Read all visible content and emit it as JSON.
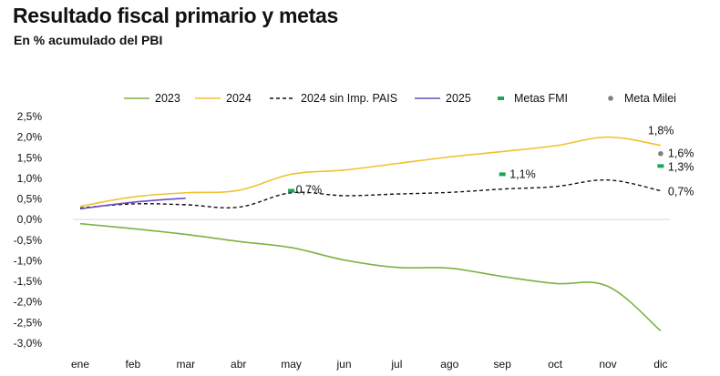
{
  "header": {
    "title": "Resultado fiscal primario y metas",
    "subtitle": "En % acumulado del PBI"
  },
  "chart_data": {
    "type": "line",
    "categories": [
      "ene",
      "feb",
      "mar",
      "abr",
      "may",
      "jun",
      "jul",
      "ago",
      "sep",
      "oct",
      "nov",
      "dic"
    ],
    "y_ticks": [
      "2,5%",
      "2,0%",
      "1,5%",
      "1,0%",
      "0,5%",
      "0,0%",
      "-0,5%",
      "-1,0%",
      "-1,5%",
      "-2,0%",
      "-2,5%",
      "-3,0%"
    ],
    "ylim": [
      -3.0,
      2.5
    ],
    "grid": false,
    "legend_position": "top",
    "series": [
      {
        "name": "2023",
        "style": "solid",
        "color": "#7cb342",
        "values": [
          -0.1,
          -0.22,
          -0.36,
          -0.53,
          -0.68,
          -0.98,
          -1.16,
          -1.18,
          -1.38,
          -1.55,
          -1.62,
          -2.7
        ]
      },
      {
        "name": "2024",
        "style": "solid",
        "color": "#f2c12e",
        "values": [
          0.32,
          0.55,
          0.65,
          0.71,
          1.1,
          1.2,
          1.36,
          1.52,
          1.65,
          1.79,
          2.0,
          1.8
        ]
      },
      {
        "name": "2024 sin Imp. PAIS",
        "style": "dashed",
        "color": "#111111",
        "values": [
          0.28,
          0.38,
          0.36,
          0.3,
          0.65,
          0.58,
          0.62,
          0.66,
          0.74,
          0.8,
          0.96,
          0.7
        ]
      },
      {
        "name": "2025",
        "style": "solid",
        "color": "#6a4dbf",
        "values": [
          0.26,
          0.42,
          0.52,
          null,
          null,
          null,
          null,
          null,
          null,
          null,
          null,
          null
        ]
      }
    ],
    "markers": [
      {
        "name": "Metas FMI",
        "color": "#1aa55a",
        "shape": "dash",
        "points": [
          {
            "x": "may",
            "y": 0.7
          },
          {
            "x": "sep",
            "y": 1.1
          },
          {
            "x": "dic",
            "y": 1.3
          }
        ]
      },
      {
        "name": "Meta Milei",
        "color": "#808080",
        "shape": "dot",
        "points": [
          {
            "x": "dic",
            "y": 1.6
          }
        ]
      }
    ],
    "data_labels": [
      {
        "x": "dic",
        "y": 1.8,
        "text": "1,8%"
      },
      {
        "x": "dic",
        "y": 1.6,
        "text": "1,6%"
      },
      {
        "x": "dic",
        "y": 1.3,
        "text": "1,3%"
      },
      {
        "x": "dic",
        "y": 0.7,
        "text": "0,7%"
      },
      {
        "x": "sep",
        "y": 1.1,
        "text": "1,1%"
      },
      {
        "x": "may",
        "y": 0.7,
        "text": "0,7%"
      }
    ]
  }
}
